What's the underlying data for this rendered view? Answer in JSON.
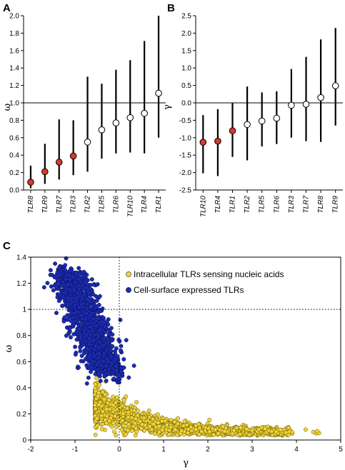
{
  "chart_data": [
    {
      "panel_label": "A",
      "type": "scatter",
      "ylabel": "ω",
      "ylim": [
        0,
        2
      ],
      "yticks": [
        "0.0",
        "0.2",
        "0.4",
        "0.6",
        "0.8",
        "1.0",
        "1.2",
        "1.4",
        "1.6",
        "1.8",
        "2.0"
      ],
      "reference_line_y": 1.0,
      "categories": [
        "TLR8",
        "TLR9",
        "TLR7",
        "TLR3",
        "TLR2",
        "TLR5",
        "TLR6",
        "TLR10",
        "TLR4",
        "TLR1"
      ],
      "values": [
        0.09,
        0.21,
        0.32,
        0.39,
        0.55,
        0.69,
        0.77,
        0.83,
        0.88,
        1.11
      ],
      "lower": [
        0.02,
        0.07,
        0.12,
        0.17,
        0.21,
        0.36,
        0.42,
        0.43,
        0.42,
        0.6
      ],
      "upper": [
        0.28,
        0.53,
        0.81,
        0.8,
        1.3,
        1.22,
        1.38,
        1.49,
        1.71,
        2.0
      ],
      "marker_colors": [
        "#d63a2e",
        "#d63a2e",
        "#d63a2e",
        "#d63a2e",
        "#ffffff",
        "#ffffff",
        "#ffffff",
        "#ffffff",
        "#ffffff",
        "#ffffff"
      ]
    },
    {
      "panel_label": "B",
      "type": "scatter",
      "ylabel": "γ",
      "ylim": [
        -2.5,
        2.5
      ],
      "yticks": [
        "-2.5",
        "-2.0",
        "-1.5",
        "-1.0",
        "-0.5",
        "0.0",
        "0.5",
        "1.0",
        "1.5",
        "2.0",
        "2.5"
      ],
      "reference_line_y": 0.0,
      "categories": [
        "TLR10",
        "TLR4",
        "TLR1",
        "TLR2",
        "TLR5",
        "TLR6",
        "TLR3",
        "TLR7",
        "TLR8",
        "TLR9"
      ],
      "values": [
        -1.13,
        -1.1,
        -0.8,
        -0.62,
        -0.52,
        -0.44,
        -0.07,
        -0.04,
        0.15,
        0.49
      ],
      "lower": [
        -2.02,
        -2.1,
        -1.55,
        -1.65,
        -1.25,
        -1.18,
        -1.0,
        -1.1,
        -1.12,
        -0.65
      ],
      "upper": [
        -0.35,
        -0.18,
        0.0,
        0.47,
        0.3,
        0.33,
        0.97,
        1.32,
        1.82,
        2.15
      ],
      "marker_colors": [
        "#d63a2e",
        "#d63a2e",
        "#d63a2e",
        "#ffffff",
        "#ffffff",
        "#ffffff",
        "#ffffff",
        "#ffffff",
        "#ffffff",
        "#ffffff"
      ]
    },
    {
      "panel_label": "C",
      "type": "scatter",
      "xlabel": "γ",
      "ylabel": "ω",
      "xlim": [
        -2,
        5
      ],
      "ylim": [
        0,
        1.4
      ],
      "xticks": [
        "-2",
        "-1",
        "0",
        "1",
        "2",
        "3",
        "4",
        "5"
      ],
      "yticks": [
        "0",
        "0.2",
        "0.4",
        "0.6",
        "0.8",
        "1",
        "1.2",
        "1.4"
      ],
      "reference_lines": {
        "x": 0,
        "y": 1
      },
      "legend_position": "top-right",
      "series": [
        {
          "name": "Intracellular TLRs sensing nucleic acids",
          "color": "#f2d43a",
          "cloud": {
            "gamma_range": [
              -0.6,
              4.7
            ],
            "omega_at_gamma0": 0.25,
            "omega_min": 0.04
          }
        },
        {
          "name": "Cell-surface expressed TLRs",
          "color": "#1c2cb4",
          "cloud": {
            "gamma_range": [
              -1.6,
              0.1
            ],
            "omega_range": [
              0.48,
              1.39
            ]
          }
        }
      ]
    }
  ]
}
